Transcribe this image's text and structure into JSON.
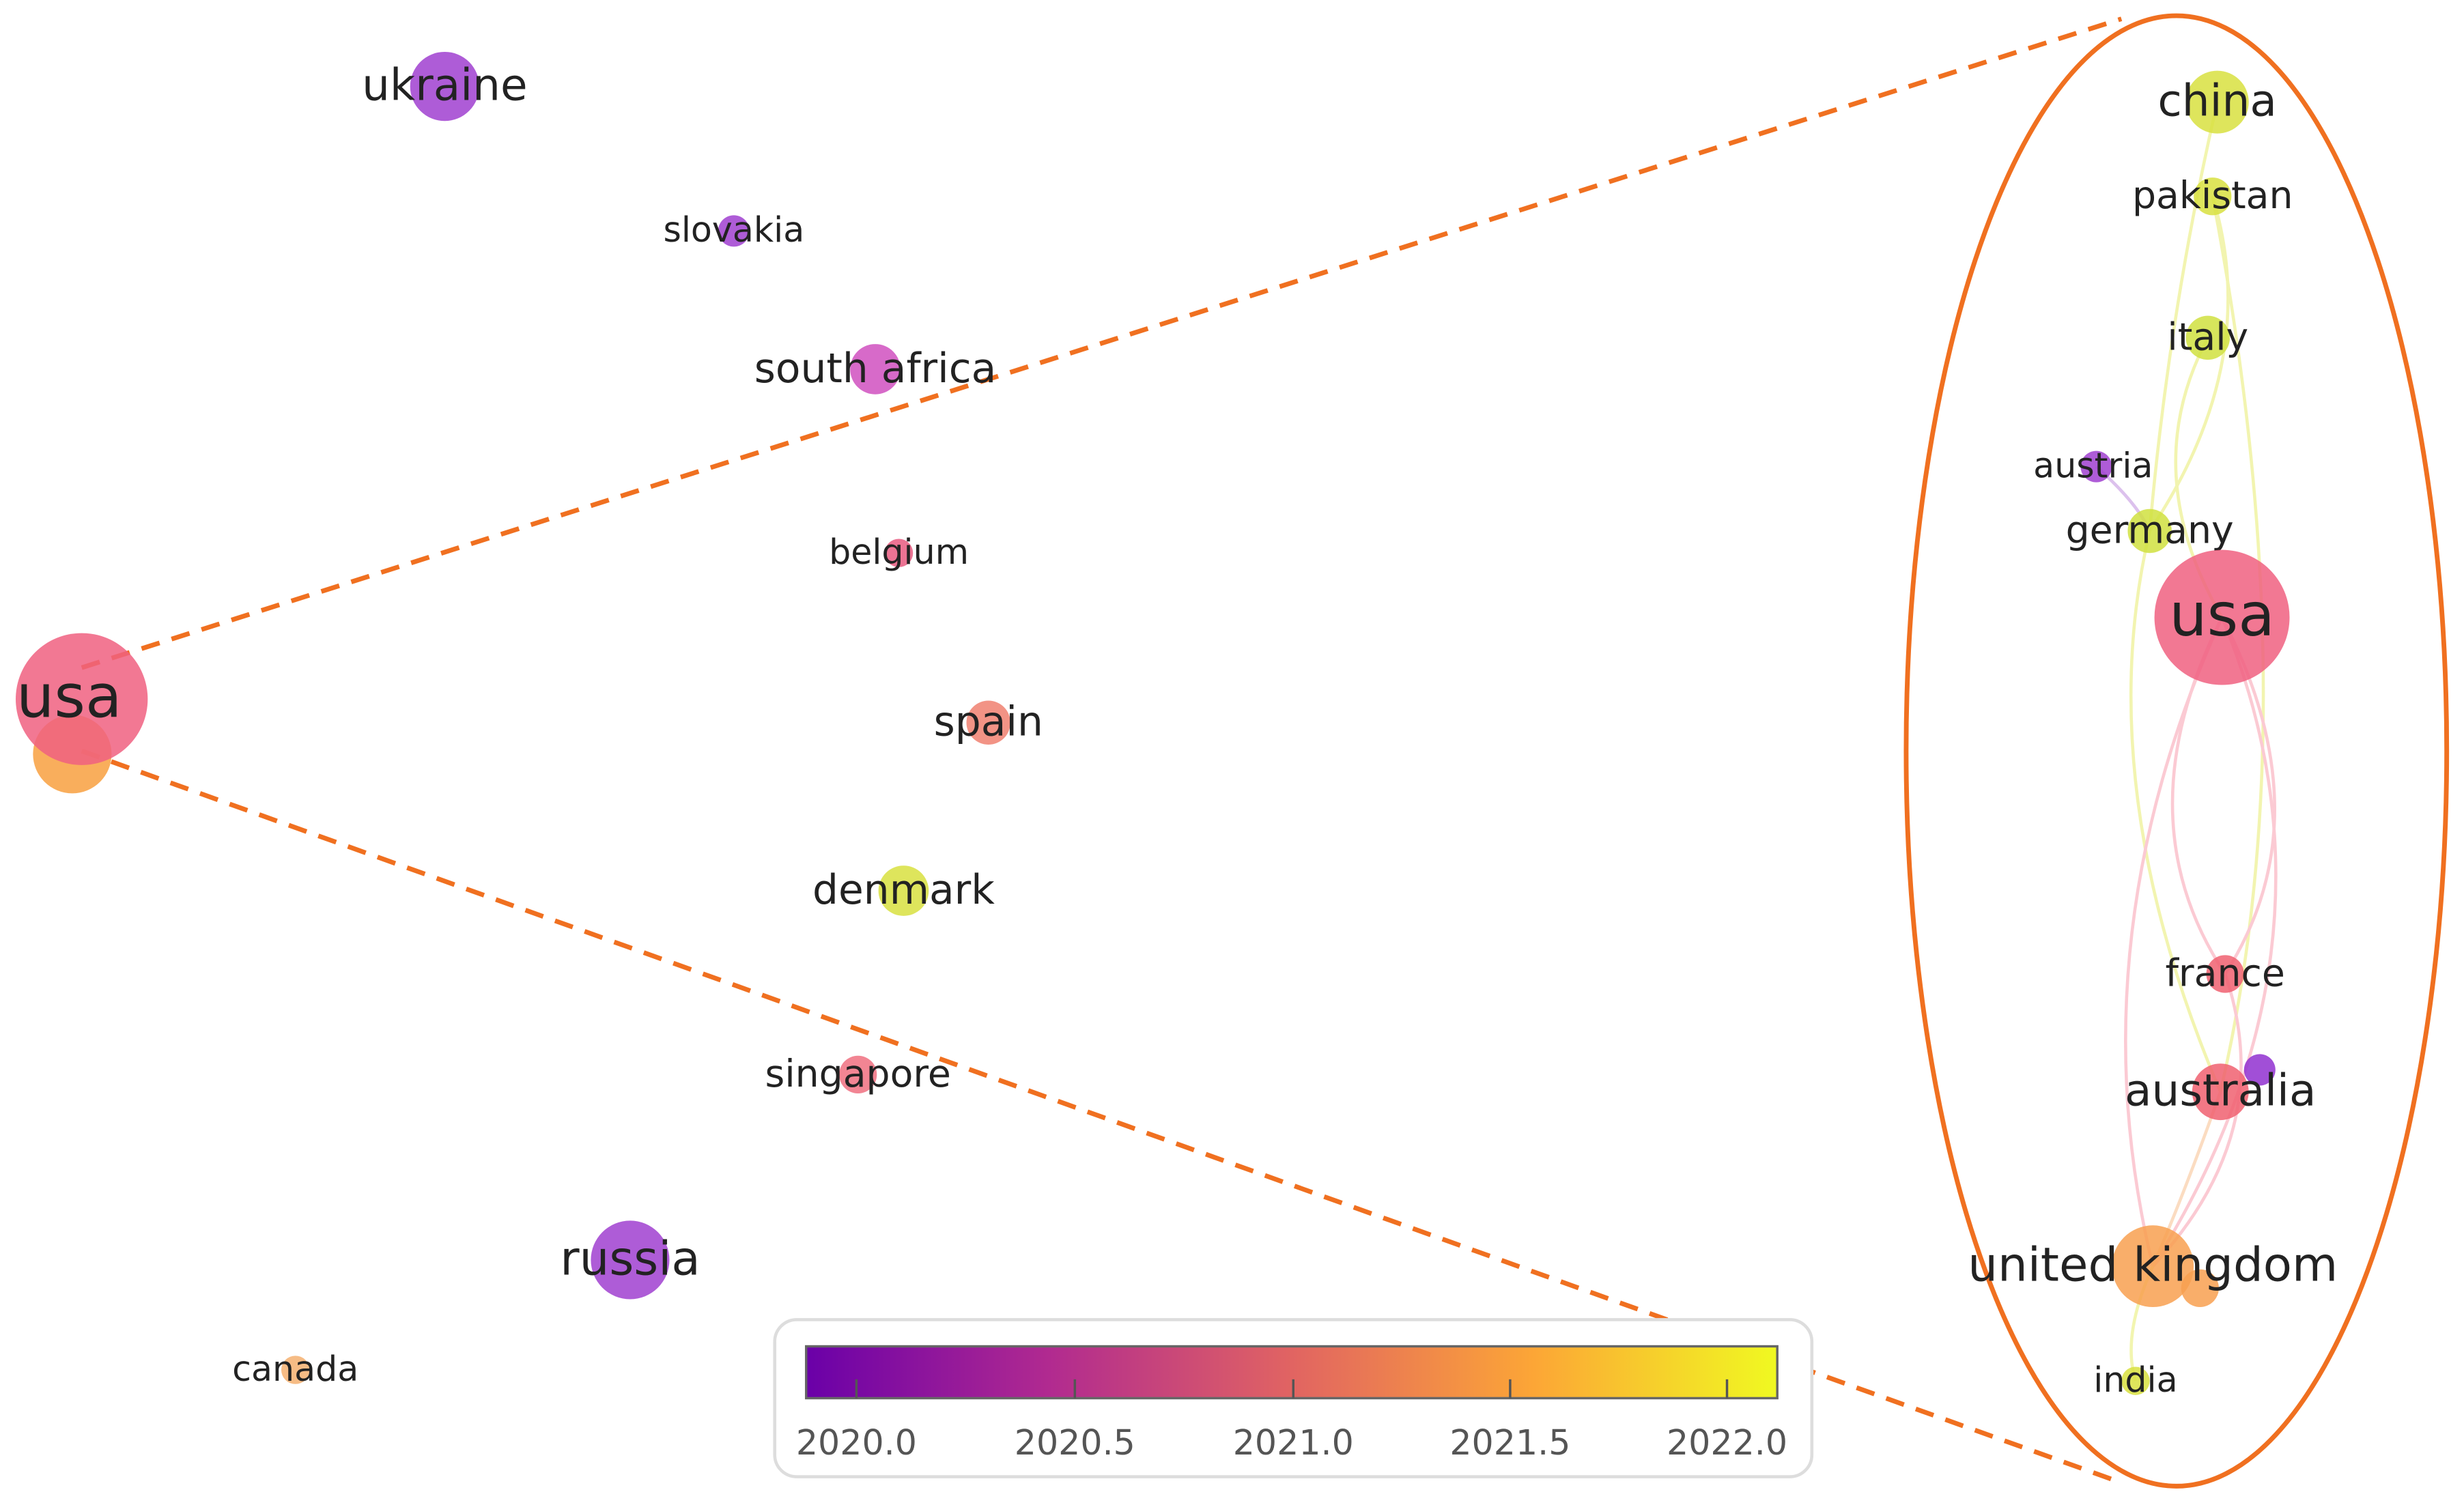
{
  "overview_nodes": [
    {
      "label": "ukraine"
    },
    {
      "label": "slovakia"
    },
    {
      "label": "south africa"
    },
    {
      "label": "belgium"
    },
    {
      "label": "spain"
    },
    {
      "label": "denmark"
    },
    {
      "label": "singapore"
    },
    {
      "label": "russia"
    },
    {
      "label": "canada"
    },
    {
      "label": "usa"
    }
  ],
  "zoom_nodes": [
    {
      "label": "china"
    },
    {
      "label": "pakistan"
    },
    {
      "label": "italy"
    },
    {
      "label": "austria"
    },
    {
      "label": "germany"
    },
    {
      "label": "usa"
    },
    {
      "label": "france"
    },
    {
      "label": "australia"
    },
    {
      "label": "united kingdom"
    },
    {
      "label": "india"
    }
  ],
  "color_scale": {
    "ticks": [
      "2020.0",
      "2020.5",
      "2021.0",
      "2021.5",
      "2022.0"
    ]
  }
}
